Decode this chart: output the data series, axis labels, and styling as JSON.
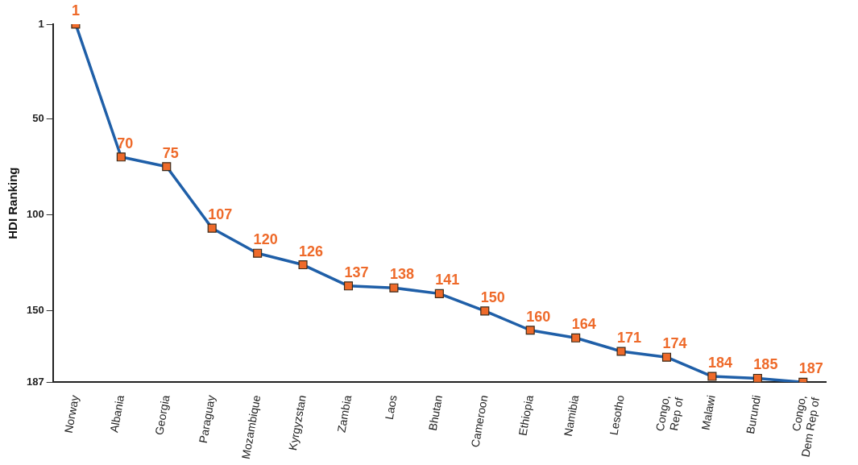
{
  "chart_data": {
    "type": "line",
    "ylabel": "HDI Ranking",
    "categories": [
      "Norway",
      "Albania",
      "Georgia",
      "Paraguay",
      "Mozambique",
      "Kyrgyzstan",
      "Zambia",
      "Laos",
      "Bhutan",
      "Cameroon",
      "Ethiopia",
      "Namibia",
      "Lesotho",
      "Congo, Rep of",
      "Malawi",
      "Burundi",
      "Congo, Dem Rep of"
    ],
    "series": [
      {
        "color": "#1f5fa8",
        "values": [
          1,
          70,
          75,
          107,
          120,
          126,
          137,
          138,
          141,
          150,
          160,
          164,
          171,
          174,
          184,
          185,
          187
        ]
      }
    ],
    "ylim": [
      187,
      1
    ],
    "yticks": [
      1,
      50,
      100,
      150,
      187
    ],
    "grid": false,
    "legend": false,
    "marker": "square",
    "line_style": "solid",
    "data_labels": true
  }
}
